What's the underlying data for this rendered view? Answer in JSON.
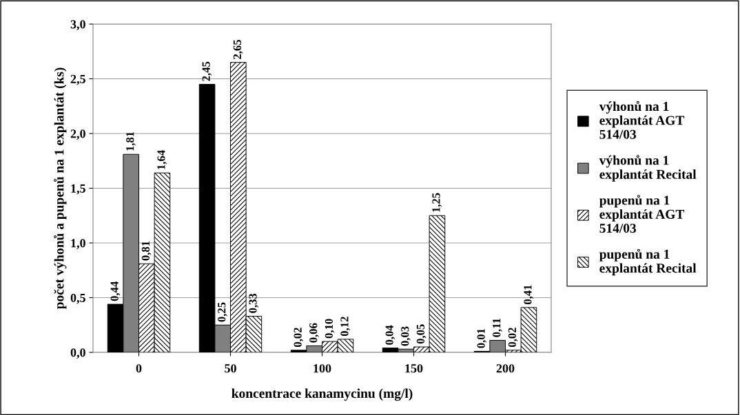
{
  "chart_data": {
    "type": "bar",
    "xlabel": "koncentrace kanamycinu (mg/l)",
    "ylabel": "počet výhonů a pupenů na 1 explantát (ks)",
    "categories": [
      "0",
      "50",
      "100",
      "150",
      "200"
    ],
    "series": [
      {
        "name": "výhonů na 1\nexplantát AGT\n514/03",
        "color": "#000000",
        "values": [
          0.44,
          2.45,
          0.02,
          0.04,
          0.01
        ],
        "value_labels": [
          "0,44",
          "2,45",
          "0,02",
          "0,04",
          "0,01"
        ]
      },
      {
        "name": "výhonů na 1\nexplantát Recital",
        "color": "#808080",
        "values": [
          1.81,
          0.25,
          0.06,
          0.03,
          0.11
        ],
        "value_labels": [
          "1,81",
          "0,25",
          "0,06",
          "0,03",
          "0,11"
        ]
      },
      {
        "name": "pupenů na 1\nexplantát AGT\n514/03",
        "color": "#000000",
        "values": [
          0.81,
          2.65,
          0.1,
          0.05,
          0.02
        ],
        "value_labels": [
          "0,81",
          "2,65",
          "0,10",
          "0,05",
          "0,02"
        ]
      },
      {
        "name": "pupenů na 1\nexplantát Recital",
        "color": "#000000",
        "values": [
          1.64,
          0.33,
          0.12,
          1.25,
          0.41
        ],
        "value_labels": [
          "1,64",
          "0,33",
          "0,12",
          "1,25",
          "0,41"
        ]
      }
    ],
    "ylim": [
      0,
      3
    ],
    "yticks": [
      {
        "value": 0,
        "label": "0,0"
      },
      {
        "value": 0.5,
        "label": "0,5"
      },
      {
        "value": 1,
        "label": "1,0"
      },
      {
        "value": 1.5,
        "label": "1,5"
      },
      {
        "value": 2,
        "label": "2,0"
      },
      {
        "value": 2.5,
        "label": "2,5"
      },
      {
        "value": 3,
        "label": "3,0"
      }
    ],
    "grid": "y",
    "legend": "right"
  }
}
